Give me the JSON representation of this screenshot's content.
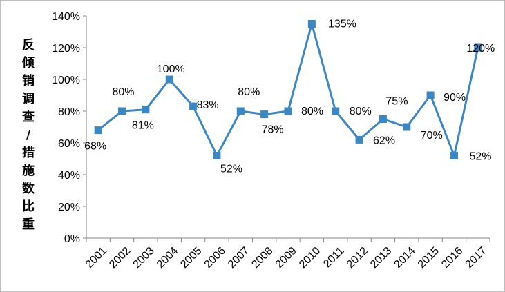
{
  "chart_data": {
    "type": "line",
    "title": "",
    "xlabel": "",
    "ylabel": "反倾销调查/措施数比重",
    "categories": [
      "2001",
      "2002",
      "2003",
      "2004",
      "2005",
      "2006",
      "2007",
      "2008",
      "2009",
      "2010",
      "2011",
      "2012",
      "2013",
      "2014",
      "2015",
      "2016",
      "2017"
    ],
    "series": [
      {
        "values": [
          68,
          80,
          81,
          100,
          83,
          52,
          80,
          78,
          80,
          135,
          80,
          62,
          75,
          70,
          90,
          52,
          120
        ]
      }
    ],
    "data_labels": {
      "2001": "68%",
      "2002": "80%",
      "2003": "81%",
      "2004": "100%",
      "2005": "83%",
      "2006": "52%",
      "2007": "80%",
      "2008": "78%",
      "2009": "80%",
      "2010": "135%",
      "2011": "80%",
      "2012": "62%",
      "2013": "75%",
      "2014": "70%",
      "2015": "90%",
      "2016": "52%",
      "2017": "120%"
    },
    "yticks": [
      "0%",
      "20%",
      "40%",
      "60%",
      "80%",
      "100%",
      "120%",
      "140%"
    ],
    "ylim": [
      0,
      140
    ],
    "grid": false,
    "line_color": "#3a87c3",
    "marker": "square"
  }
}
